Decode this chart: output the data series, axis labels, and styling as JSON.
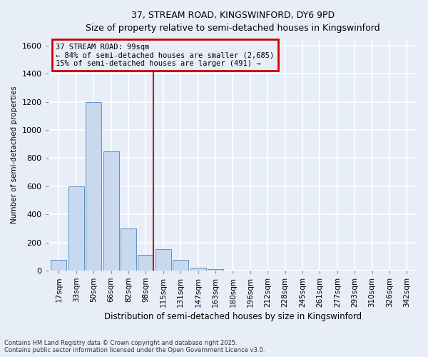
{
  "title1": "37, STREAM ROAD, KINGSWINFORD, DY6 9PD",
  "title2": "Size of property relative to semi-detached houses in Kingswinford",
  "xlabel": "Distribution of semi-detached houses by size in Kingswinford",
  "ylabel": "Number of semi-detached properties",
  "annotation_title": "37 STREAM ROAD: 99sqm",
  "annotation_line1": "← 84% of semi-detached houses are smaller (2,685)",
  "annotation_line2": "15% of semi-detached houses are larger (491) →",
  "footer1": "Contains HM Land Registry data © Crown copyright and database right 2025.",
  "footer2": "Contains public sector information licensed under the Open Government Licence v3.0.",
  "categories": [
    "17sqm",
    "33sqm",
    "50sqm",
    "66sqm",
    "82sqm",
    "98sqm",
    "115sqm",
    "131sqm",
    "147sqm",
    "163sqm",
    "180sqm",
    "196sqm",
    "212sqm",
    "228sqm",
    "245sqm",
    "261sqm",
    "277sqm",
    "293sqm",
    "310sqm",
    "326sqm",
    "342sqm"
  ],
  "values": [
    75,
    600,
    1200,
    850,
    300,
    110,
    150,
    75,
    20,
    12,
    0,
    0,
    0,
    0,
    0,
    0,
    0,
    0,
    0,
    0,
    0
  ],
  "bar_color": "#c8d8ee",
  "bar_edge_color": "#6090c0",
  "annotation_box_color": "#cc0000",
  "vline_color": "#cc0000",
  "background_color": "#e8eef8",
  "grid_color": "#ffffff",
  "ylim": [
    0,
    1650
  ],
  "yticks": [
    0,
    200,
    400,
    600,
    800,
    1000,
    1200,
    1400,
    1600
  ],
  "vline_index": 5
}
